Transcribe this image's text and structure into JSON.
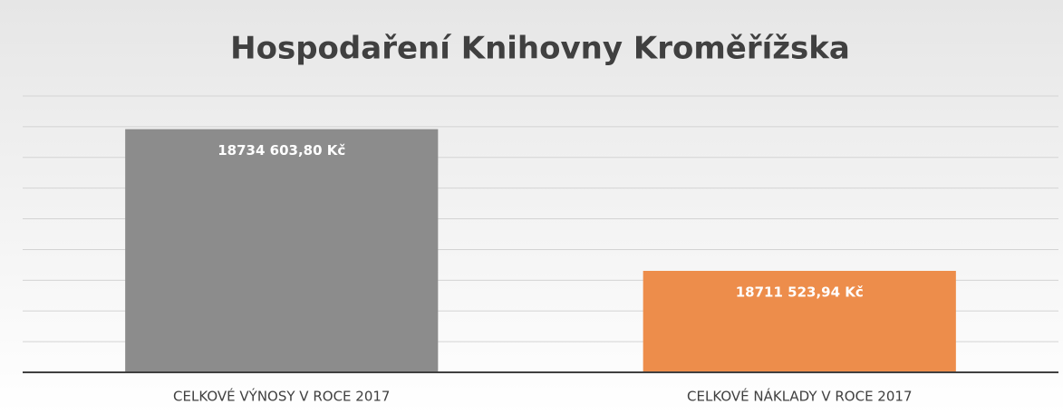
{
  "chart_data": {
    "type": "bar",
    "title": "Hospodaření Knihovny Kroměřížska",
    "categories": [
      "CELKOVÉ VÝNOSY V ROCE 2017",
      "CELKOVÉ NÁKLADY V ROCE 2017"
    ],
    "values": [
      18734603.8,
      18711523.94
    ],
    "value_labels": [
      "18734 603,80 Kč",
      "18711 523,94 Kč"
    ],
    "colors": [
      "#8c8c8c",
      "#ed8d4b"
    ],
    "ylim": [
      18695000,
      18740000
    ],
    "yticks": [
      18695000,
      18700000,
      18705000,
      18710000,
      18715000,
      18720000,
      18725000,
      18730000,
      18735000,
      18740000
    ],
    "grid": true
  }
}
